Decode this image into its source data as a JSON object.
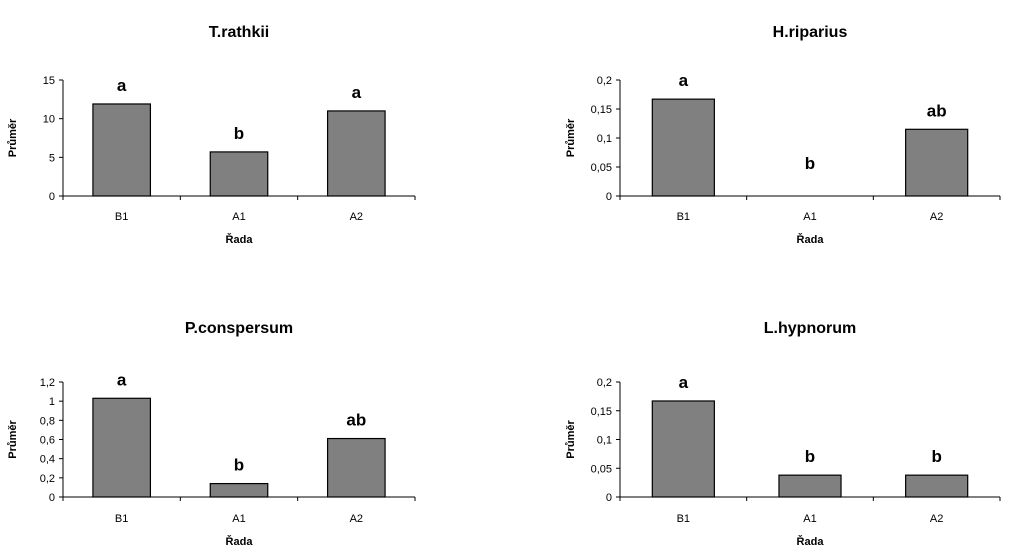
{
  "chart_data": [
    {
      "type": "bar",
      "title": "T.rathkii",
      "xlabel": "Řada",
      "ylabel": "Průměr",
      "categories": [
        "B1",
        "A1",
        "A2"
      ],
      "values": [
        11.9,
        5.7,
        11.0
      ],
      "bar_labels": [
        "a",
        "b",
        "a"
      ],
      "ylim": [
        0,
        15
      ],
      "yticks": [
        0,
        5,
        10,
        15
      ],
      "ytick_labels": [
        "0",
        "5",
        "10",
        "15"
      ],
      "bar_color": "#808080",
      "grid": false
    },
    {
      "type": "bar",
      "title": "H.riparius",
      "xlabel": "Řada",
      "ylabel": "Průměr",
      "categories": [
        "B1",
        "A1",
        "A2"
      ],
      "values": [
        0.167,
        0,
        0.115
      ],
      "bar_labels": [
        "a",
        "b",
        "ab"
      ],
      "ylim": [
        0,
        0.2
      ],
      "yticks": [
        0,
        0.05,
        0.1,
        0.15,
        0.2
      ],
      "ytick_labels": [
        "0",
        "0,05",
        "0,1",
        "0,15",
        "0,2"
      ],
      "bar_color": "#808080",
      "grid": false
    },
    {
      "type": "bar",
      "title": "P.conspersum",
      "xlabel": "Řada",
      "ylabel": "Průměr",
      "categories": [
        "B1",
        "A1",
        "A2"
      ],
      "values": [
        1.03,
        0.14,
        0.61
      ],
      "bar_labels": [
        "a",
        "b",
        "ab"
      ],
      "ylim": [
        0,
        1.2
      ],
      "yticks": [
        0,
        0.2,
        0.4,
        0.6,
        0.8,
        1,
        1.2
      ],
      "ytick_labels": [
        "0",
        "0,2",
        "0,4",
        "0,6",
        "0,8",
        "1",
        "1,2"
      ],
      "bar_color": "#808080",
      "grid": false
    },
    {
      "type": "bar",
      "title": "L.hypnorum",
      "xlabel": "Řada",
      "ylabel": "Průměr",
      "categories": [
        "B1",
        "A1",
        "A2"
      ],
      "values": [
        0.167,
        0.038,
        0.038
      ],
      "bar_labels": [
        "a",
        "b",
        "b"
      ],
      "ylim": [
        0,
        0.2
      ],
      "yticks": [
        0,
        0.05,
        0.1,
        0.15,
        0.2
      ],
      "ytick_labels": [
        "0",
        "0,05",
        "0,1",
        "0,15",
        "0,2"
      ],
      "bar_color": "#808080",
      "grid": false
    }
  ]
}
